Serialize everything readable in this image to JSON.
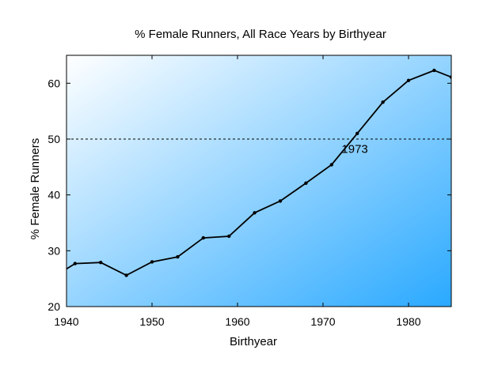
{
  "chart_data": {
    "type": "line",
    "title": "% Female Runners, All Race Years by Birthyear",
    "xlabel": "Birthyear",
    "ylabel": "% Female Runners",
    "xlim": [
      1940,
      1985
    ],
    "ylim": [
      20,
      65
    ],
    "xticks": [
      1940,
      1950,
      1960,
      1970,
      1980
    ],
    "yticks": [
      20,
      30,
      40,
      50,
      60
    ],
    "grid": false,
    "legend": "none",
    "line_color": "#000000",
    "background_gradient": [
      "#ffffff",
      "#2aa9ff"
    ],
    "reference_line": {
      "y": 50,
      "style": "dashed"
    },
    "annotation": {
      "text": "1973",
      "x": 1973,
      "y": 48.2
    },
    "series": [
      {
        "x": [
          1939,
          1941,
          1944,
          1947,
          1950,
          1953,
          1956,
          1959,
          1962,
          1965,
          1968,
          1971,
          1974,
          1977,
          1980,
          1983,
          1985
        ],
        "y": [
          25.8,
          27.7,
          27.9,
          25.6,
          28.0,
          28.9,
          32.3,
          32.6,
          36.8,
          38.9,
          42.1,
          45.4,
          51.0,
          56.6,
          60.5,
          62.3,
          61.1
        ]
      }
    ]
  }
}
